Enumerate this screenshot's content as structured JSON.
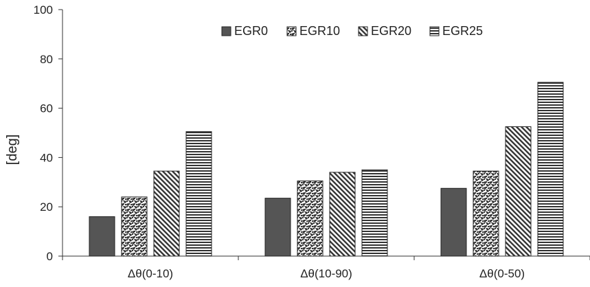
{
  "chart_data": {
    "type": "bar",
    "categories": [
      "Δθ(0-10)",
      "Δθ(10-90)",
      "Δθ(0-50)"
    ],
    "series": [
      {
        "name": "EGR0",
        "values": [
          16,
          23.5,
          27.5
        ],
        "pattern": "solid",
        "color": "#555555"
      },
      {
        "name": "EGR10",
        "values": [
          24,
          30.5,
          34.5
        ],
        "pattern": "checker",
        "color": "#333333"
      },
      {
        "name": "EGR20",
        "values": [
          34.5,
          34,
          52.5
        ],
        "pattern": "diagonal",
        "color": "#333333"
      },
      {
        "name": "EGR25",
        "values": [
          50.5,
          35,
          70.5
        ],
        "pattern": "horizontal",
        "color": "#333333"
      }
    ],
    "ylabel": "[deg]",
    "xlabel": "",
    "ylim": [
      0,
      100
    ],
    "yticks": [
      0,
      20,
      40,
      60,
      80,
      100
    ],
    "grid": false,
    "legend_position": "top-center"
  }
}
